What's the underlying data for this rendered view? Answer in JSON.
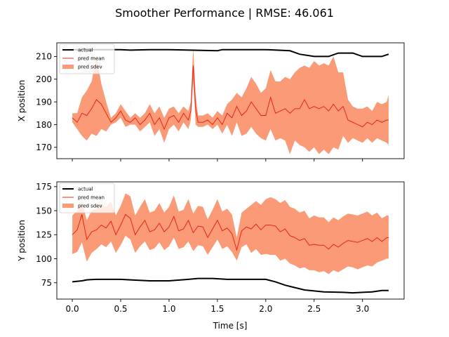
{
  "chart_data": {
    "type": "line",
    "title": "Smoother Performance | RMSE: 46.061",
    "xlabel": "Time [s]",
    "xlim": [
      -0.16,
      3.43
    ],
    "xticks": [
      0.0,
      0.5,
      1.0,
      1.5,
      2.0,
      2.5,
      3.0
    ],
    "xtick_labels": [
      "0.0",
      "0.5",
      "1.0",
      "1.5",
      "2.0",
      "2.5",
      "3.0"
    ],
    "legend_position": "upper-left",
    "colors": {
      "actual": "#000000",
      "pred_mean": "#e8170b",
      "pred_sdev": "#fa9a76"
    },
    "subplots": [
      {
        "ylabel": "X position",
        "ylim": [
          165,
          216
        ],
        "yticks": [
          170,
          180,
          190,
          200,
          210
        ],
        "ytick_labels": [
          "170",
          "180",
          "190",
          "200",
          "210"
        ],
        "legend": [
          "actual",
          "pred mean",
          "pred sdev"
        ],
        "series": [
          {
            "name": "actual",
            "x": [
              0.0,
              0.5,
              0.6,
              0.8,
              1.0,
              1.5,
              1.55,
              2.0,
              2.25,
              2.35,
              2.5,
              2.65,
              2.75,
              2.9,
              3.0,
              3.2,
              3.27
            ],
            "y": [
              213,
              213,
              212.8,
              213,
              213,
              212.5,
              213,
              213,
              212.5,
              211,
              210,
              210,
              211.5,
              211.5,
              210,
              210,
              211
            ]
          },
          {
            "name": "pred mean",
            "x": [
              0.0,
              0.05,
              0.1,
              0.15,
              0.2,
              0.25,
              0.3,
              0.35,
              0.4,
              0.45,
              0.5,
              0.55,
              0.6,
              0.65,
              0.7,
              0.75,
              0.8,
              0.85,
              0.9,
              0.95,
              1.0,
              1.05,
              1.1,
              1.15,
              1.2,
              1.225,
              1.25,
              1.275,
              1.3,
              1.35,
              1.4,
              1.45,
              1.5,
              1.55,
              1.6,
              1.65,
              1.7,
              1.75,
              1.8,
              1.85,
              1.9,
              1.95,
              2.0,
              2.05,
              2.1,
              2.15,
              2.2,
              2.25,
              2.3,
              2.35,
              2.4,
              2.45,
              2.5,
              2.55,
              2.6,
              2.65,
              2.7,
              2.75,
              2.8,
              2.85,
              2.9,
              2.95,
              3.0,
              3.05,
              3.1,
              3.15,
              3.2,
              3.25,
              3.27
            ],
            "y": [
              183,
              181,
              185,
              184,
              187,
              191,
              189,
              185,
              181,
              183,
              186,
              182,
              181,
              183,
              180,
              182,
              185,
              180,
              183,
              178,
              183,
              184,
              181,
              185,
              182,
              186,
              206,
              187,
              181,
              181,
              182,
              180,
              183,
              180,
              185,
              183,
              188,
              184,
              186,
              190,
              187,
              184,
              184,
              192,
              185,
              186,
              187,
              185,
              187,
              187,
              191,
              187,
              188,
              187,
              188,
              186,
              189,
              186,
              188,
              182,
              181,
              180,
              179,
              181,
              180,
              182,
              181,
              182,
              182
            ]
          },
          {
            "name": "pred sdev",
            "x": [
              0.0,
              0.05,
              0.1,
              0.15,
              0.2,
              0.25,
              0.3,
              0.35,
              0.4,
              0.45,
              0.5,
              0.55,
              0.6,
              0.65,
              0.7,
              0.75,
              0.8,
              0.85,
              0.9,
              0.95,
              1.0,
              1.05,
              1.1,
              1.15,
              1.2,
              1.225,
              1.25,
              1.275,
              1.3,
              1.35,
              1.4,
              1.45,
              1.5,
              1.55,
              1.6,
              1.65,
              1.7,
              1.75,
              1.8,
              1.85,
              1.9,
              1.95,
              2.0,
              2.05,
              2.1,
              2.15,
              2.2,
              2.25,
              2.3,
              2.35,
              2.4,
              2.45,
              2.5,
              2.55,
              2.6,
              2.65,
              2.7,
              2.75,
              2.8,
              2.85,
              2.9,
              2.95,
              3.0,
              3.05,
              3.1,
              3.15,
              3.2,
              3.25,
              3.27
            ],
            "lower": [
              181,
              178,
              175,
              173,
              176,
              175,
              178,
              177,
              180,
              181,
              183,
              179,
              180,
              180,
              177,
              179,
              181,
              175,
              178,
              172,
              178,
              180,
              177,
              181,
              178,
              182,
              200,
              180,
              179,
              179,
              180,
              178,
              180,
              176,
              180,
              175,
              181,
              175,
              176,
              179,
              176,
              174,
              173,
              178,
              173,
              174,
              173,
              167,
              173,
              171,
              170,
              168,
              170,
              167,
              169,
              167,
              170,
              169,
              175,
              172,
              174,
              173,
              172,
              174,
              172,
              174,
              173,
              172,
              171
            ],
            "upper": [
              185,
              185,
              192,
              195,
              199,
              210,
              198,
              190,
              183,
              185,
              189,
              186,
              183,
              185,
              183,
              185,
              189,
              185,
              188,
              183,
              187,
              188,
              185,
              188,
              186,
              190,
              214,
              193,
              184,
              184,
              185,
              183,
              186,
              184,
              189,
              191,
              194,
              192,
              196,
              201,
              198,
              194,
              196,
              204,
              199,
              199,
              201,
              200,
              203,
              205,
              206,
              205,
              208,
              206,
              207,
              206,
              210,
              203,
              203,
              191,
              188,
              187,
              187,
              188,
              186,
              190,
              189,
              190,
              193
            ]
          }
        ]
      },
      {
        "ylabel": "Y position",
        "ylim": [
          58,
          180
        ],
        "yticks": [
          75,
          100,
          125,
          150,
          175
        ],
        "ytick_labels": [
          "75",
          "100",
          "125",
          "150",
          "175"
        ],
        "legend": [
          "actual",
          "pred mean",
          "pred sdev"
        ],
        "series": [
          {
            "name": "actual",
            "x": [
              0.0,
              0.1,
              0.15,
              0.25,
              0.5,
              0.6,
              0.8,
              1.0,
              1.2,
              1.3,
              1.45,
              1.6,
              2.0,
              2.1,
              2.2,
              2.3,
              2.4,
              2.5,
              2.6,
              2.8,
              2.9,
              3.0,
              3.1,
              3.2,
              3.27
            ],
            "y": [
              76,
              77,
              78,
              78.5,
              78.5,
              78,
              77,
              77,
              78.5,
              79.5,
              79.5,
              78.5,
              78.5,
              76,
              72.5,
              70,
              67.5,
              66.5,
              65.5,
              65,
              64.5,
              65,
              65.5,
              67,
              67
            ]
          },
          {
            "name": "pred mean",
            "x": [
              0.0,
              0.05,
              0.1,
              0.15,
              0.2,
              0.25,
              0.3,
              0.35,
              0.4,
              0.45,
              0.5,
              0.55,
              0.6,
              0.65,
              0.7,
              0.75,
              0.8,
              0.85,
              0.9,
              0.95,
              1.0,
              1.05,
              1.1,
              1.15,
              1.2,
              1.25,
              1.3,
              1.35,
              1.4,
              1.45,
              1.5,
              1.55,
              1.6,
              1.65,
              1.7,
              1.75,
              1.8,
              1.85,
              1.9,
              1.95,
              2.0,
              2.05,
              2.1,
              2.15,
              2.2,
              2.25,
              2.3,
              2.35,
              2.4,
              2.45,
              2.5,
              2.55,
              2.6,
              2.65,
              2.7,
              2.75,
              2.8,
              2.85,
              2.9,
              2.95,
              3.0,
              3.05,
              3.1,
              3.15,
              3.2,
              3.25,
              3.27
            ],
            "y": [
              125,
              130,
              146,
              120,
              128,
              130,
              135,
              132,
              139,
              125,
              135,
              146,
              142,
              125,
              133,
              140,
              128,
              130,
              137,
              128,
              133,
              144,
              129,
              131,
              140,
              127,
              134,
              133,
              122,
              131,
              140,
              129,
              132,
              126,
              109,
              129,
              133,
              131,
              136,
              130,
              135,
              135,
              134,
              128,
              131,
              124,
              122,
              119,
              121,
              114,
              115,
              114,
              114,
              110,
              115,
              112,
              116,
              119,
              118,
              117,
              119,
              121,
              118,
              122,
              118,
              122,
              122
            ]
          },
          {
            "name": "pred sdev",
            "x": [
              0.0,
              0.05,
              0.1,
              0.15,
              0.2,
              0.25,
              0.3,
              0.35,
              0.4,
              0.45,
              0.5,
              0.55,
              0.6,
              0.65,
              0.7,
              0.75,
              0.8,
              0.85,
              0.9,
              0.95,
              1.0,
              1.05,
              1.1,
              1.15,
              1.2,
              1.25,
              1.3,
              1.35,
              1.4,
              1.45,
              1.5,
              1.55,
              1.6,
              1.65,
              1.7,
              1.75,
              1.8,
              1.85,
              1.9,
              1.95,
              2.0,
              2.05,
              2.1,
              2.15,
              2.2,
              2.25,
              2.3,
              2.35,
              2.4,
              2.45,
              2.5,
              2.55,
              2.6,
              2.65,
              2.7,
              2.75,
              2.8,
              2.85,
              2.9,
              2.95,
              3.0,
              3.05,
              3.1,
              3.15,
              3.2,
              3.25,
              3.27
            ],
            "lower": [
              105,
              107,
              117,
              97,
              106,
              110,
              115,
              112,
              118,
              106,
              114,
              124,
              120,
              106,
              113,
              118,
              109,
              111,
              117,
              109,
              113,
              122,
              110,
              112,
              118,
              108,
              114,
              113,
              104,
              112,
              120,
              110,
              113,
              107,
              98,
              112,
              115,
              106,
              110,
              104,
              105,
              104,
              104,
              98,
              100,
              95,
              93,
              90,
              91,
              88,
              88,
              86,
              87,
              84,
              88,
              86,
              89,
              92,
              91,
              89,
              91,
              93,
              92,
              96,
              98,
              100,
              100
            ]
          },
          {
            "name": "pred sdev upper",
            "x": [],
            "y": []
          }
        ],
        "band_upper": [
          145,
          150,
          160,
          140,
          150,
          152,
          157,
          154,
          160,
          145,
          155,
          168,
          165,
          145,
          154,
          162,
          148,
          150,
          158,
          148,
          154,
          166,
          149,
          151,
          162,
          147,
          155,
          154,
          141,
          151,
          162,
          149,
          152,
          146,
          122,
          148,
          152,
          156,
          160,
          156,
          162,
          164,
          162,
          158,
          161,
          154,
          152,
          148,
          150,
          142,
          145,
          143,
          143,
          138,
          143,
          140,
          144,
          147,
          146,
          145,
          147,
          149,
          145,
          148,
          142,
          145,
          145
        ]
      }
    ]
  }
}
